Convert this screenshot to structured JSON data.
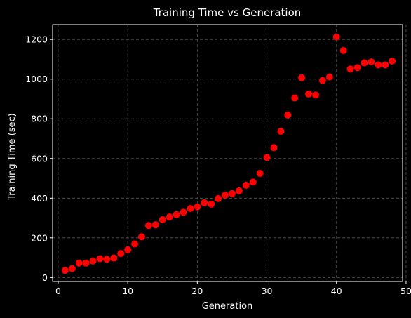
{
  "chart_data": {
    "type": "scatter",
    "title": "Training Time vs Generation",
    "xlabel": "Generation",
    "ylabel": "Training Time (sec)",
    "xlim": [
      -0.8,
      49.5
    ],
    "ylim": [
      -20,
      1275
    ],
    "xticks": [
      0,
      10,
      20,
      30,
      40,
      50
    ],
    "yticks": [
      0,
      200,
      400,
      600,
      800,
      1000,
      1200
    ],
    "grid": true,
    "colors": {
      "background": "#000000",
      "marker": "#ff0000",
      "axes": "#ffffff",
      "grid": "#555555"
    },
    "series": [
      {
        "name": "Training Time",
        "x": [
          1,
          2,
          3,
          4,
          5,
          6,
          7,
          8,
          9,
          10,
          11,
          12,
          13,
          14,
          15,
          16,
          17,
          18,
          19,
          20,
          21,
          22,
          23,
          24,
          25,
          26,
          27,
          28,
          29,
          30,
          31,
          32,
          33,
          34,
          35,
          36,
          37,
          38,
          39,
          40,
          41,
          42,
          43,
          44,
          45,
          46,
          47,
          48
        ],
        "y": [
          36,
          45,
          73,
          73,
          83,
          95,
          92,
          98,
          121,
          140,
          169,
          205,
          262,
          266,
          292,
          305,
          317,
          329,
          348,
          356,
          377,
          370,
          398,
          415,
          423,
          437,
          465,
          481,
          525,
          605,
          655,
          737,
          819,
          905,
          1007,
          925,
          920,
          993,
          1011,
          1213,
          1144,
          1051,
          1058,
          1082,
          1087,
          1072,
          1072,
          1091
        ]
      }
    ]
  }
}
